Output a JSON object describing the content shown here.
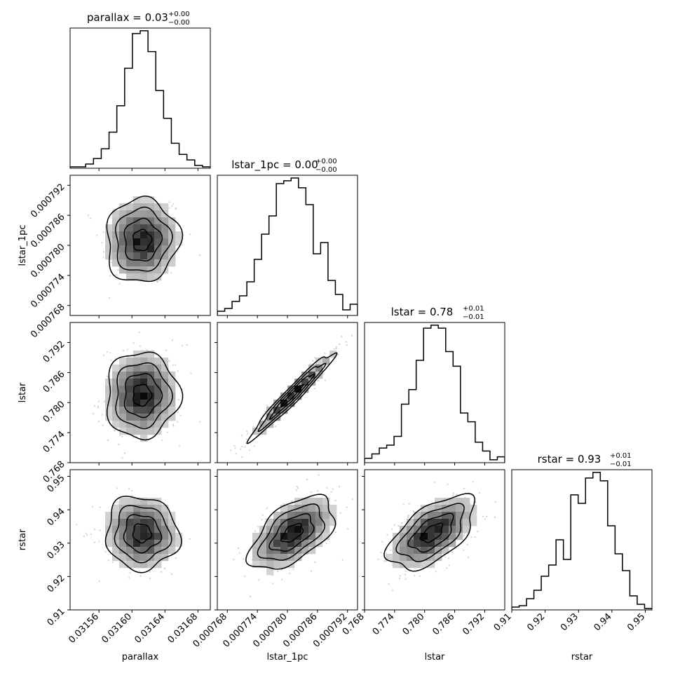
{
  "chart_data": {
    "type": "corner",
    "parameters": [
      "parallax",
      "lstar_1pc",
      "lstar",
      "rstar"
    ],
    "axis_labels": [
      "parallax",
      "lstar_1pc",
      "lstar",
      "rstar"
    ],
    "titles": [
      {
        "main": "parallax = 0.03",
        "sup": "+0.00",
        "sub": "−0.00"
      },
      {
        "main": "lstar_1pc = 0.00",
        "sup": "+0.00",
        "sub": "−0.00"
      },
      {
        "main": "lstar = 0.78",
        "sup": "+0.01",
        "sub": "−0.01"
      },
      {
        "main": "rstar = 0.93",
        "sup": "+0.01",
        "sub": "−0.01"
      }
    ],
    "ranges": [
      [
        0.031525,
        0.031695
      ],
      [
        0.000766,
        0.000794
      ],
      [
        0.768,
        0.796
      ],
      [
        0.91,
        0.952
      ]
    ],
    "ticks": [
      [
        0.03156,
        0.0316,
        0.03164,
        0.03168
      ],
      [
        0.000768,
        0.000774,
        0.00078,
        0.000786,
        0.000792
      ],
      [
        0.768,
        0.774,
        0.78,
        0.786,
        0.792
      ],
      [
        0.91,
        0.92,
        0.93,
        0.94,
        0.95
      ]
    ],
    "tick_labels": [
      [
        "0.03156",
        "0.03160",
        "0.03164",
        "0.03168"
      ],
      [
        "0.000768",
        "0.000774",
        "0.000780",
        "0.000786",
        "0.000792"
      ],
      [
        "0.768",
        "0.774",
        "0.780",
        "0.786",
        "0.792"
      ],
      [
        "0.91",
        "0.92",
        "0.93",
        "0.94",
        "0.95"
      ]
    ],
    "histograms": [
      [
        1,
        1,
        3,
        7,
        14,
        26,
        45,
        72,
        97,
        99,
        84,
        56,
        36,
        18,
        10,
        6,
        2,
        1
      ],
      [
        3,
        5,
        10,
        14,
        24,
        40,
        58,
        71,
        94,
        96,
        98,
        91,
        79,
        44,
        52,
        25,
        15,
        4,
        8
      ],
      [
        3,
        6,
        10,
        12,
        18,
        40,
        50,
        70,
        92,
        94,
        92,
        76,
        66,
        34,
        28,
        14,
        8,
        2,
        4
      ],
      [
        2,
        3,
        8,
        14,
        24,
        32,
        50,
        36,
        82,
        76,
        94,
        98,
        92,
        60,
        40,
        28,
        10,
        4,
        1
      ]
    ],
    "correlations": [
      [
        1,
        0,
        0,
        0
      ],
      [
        0.04,
        1,
        0,
        0
      ],
      [
        0.02,
        0.97,
        1,
        0
      ],
      [
        -0.05,
        0.55,
        0.58,
        1
      ]
    ],
    "means": [
      0.031612,
      0.000781,
      0.7815,
      0.933
    ],
    "sigmas": [
      2.2e-05,
      4.2e-06,
      0.0043,
      0.0055
    ],
    "contour_color": "#000000",
    "hist_color": "#000000"
  }
}
